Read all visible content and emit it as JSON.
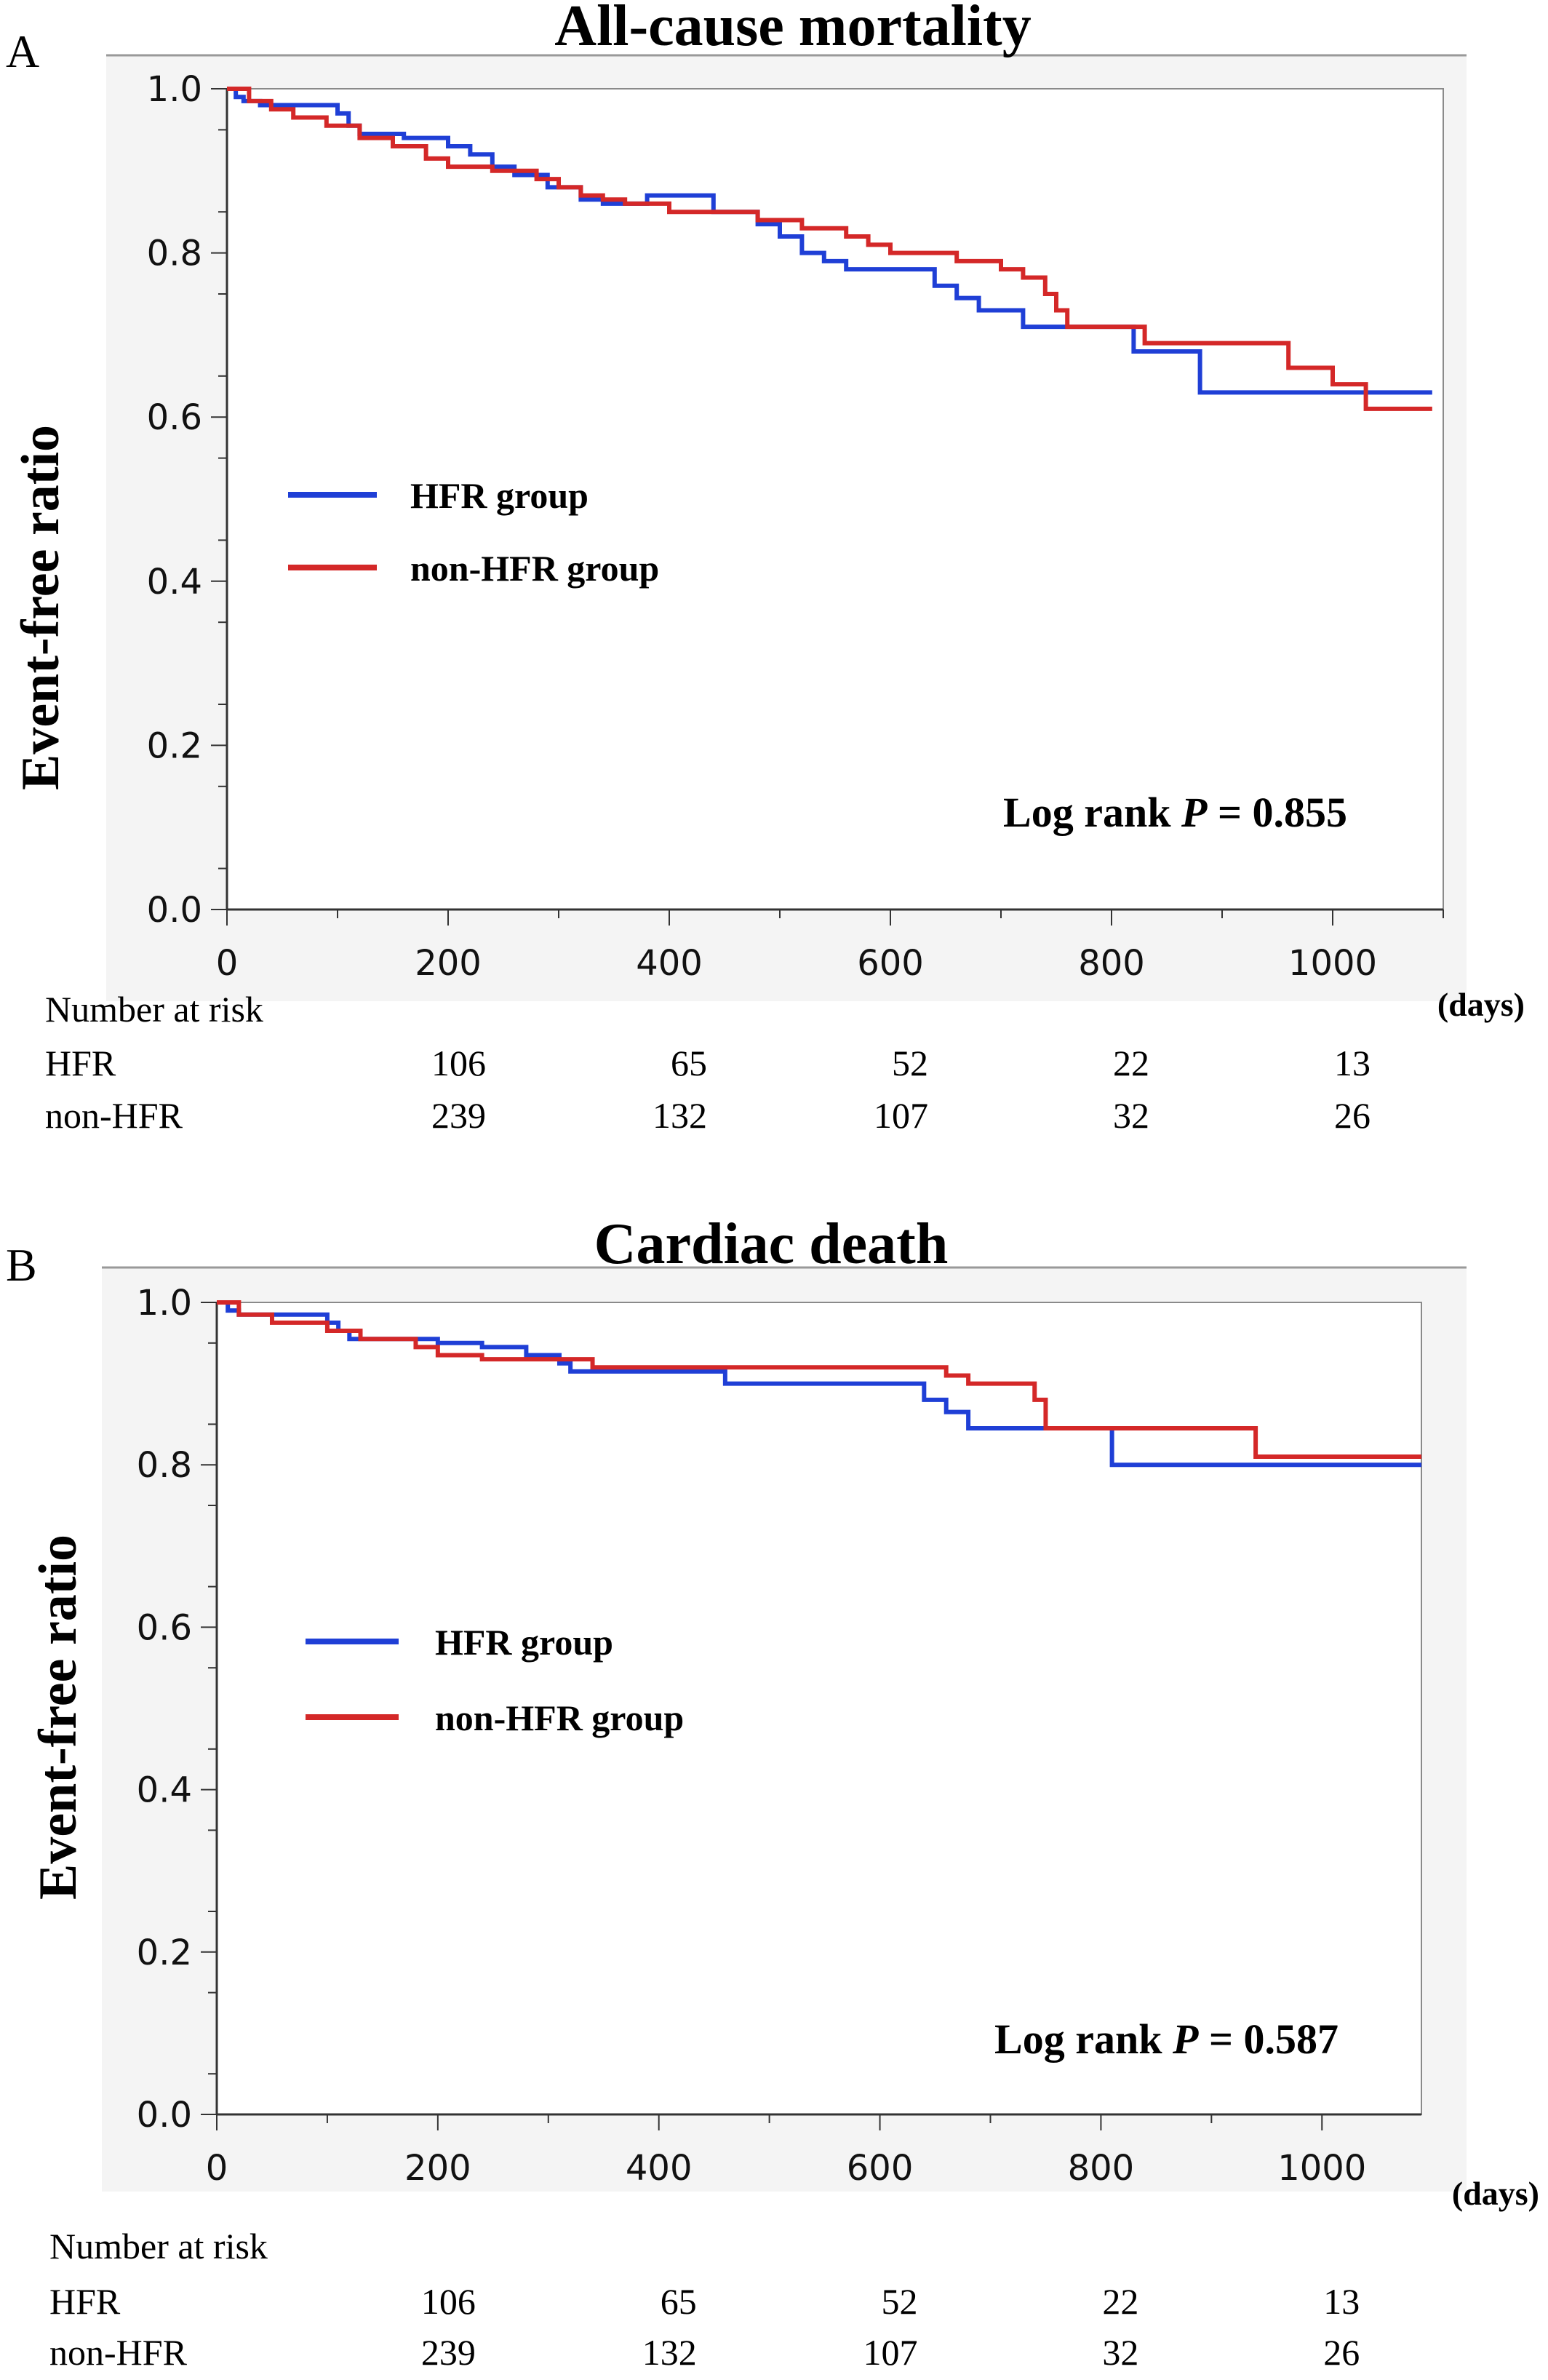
{
  "chart_data": [
    {
      "panel_label": "A",
      "type": "line",
      "step": true,
      "title": "All-cause mortality",
      "xlabel": "",
      "x_unit": "(days)",
      "ylabel": "Event-free ratio",
      "xlim": [
        0,
        1100
      ],
      "ylim": [
        0,
        1
      ],
      "xticks": [
        0,
        200,
        400,
        600,
        800,
        1000
      ],
      "yticks": [
        "0.0",
        "0.2",
        "0.4",
        "0.6",
        "0.8",
        "1.0"
      ],
      "grid": false,
      "legend_position": "center-left",
      "annotation": {
        "prefix": "Log rank ",
        "italic": "P",
        "suffix": " = 0.855"
      },
      "series": [
        {
          "name": "HFR group",
          "color": "#1f3fd6",
          "x": [
            0,
            8,
            15,
            30,
            100,
            110,
            120,
            160,
            200,
            220,
            240,
            260,
            290,
            320,
            340,
            380,
            420,
            440,
            480,
            500,
            520,
            540,
            560,
            600,
            640,
            660,
            680,
            720,
            800,
            820,
            880,
            1000,
            1090
          ],
          "y": [
            1.0,
            0.99,
            0.985,
            0.98,
            0.97,
            0.955,
            0.945,
            0.94,
            0.93,
            0.92,
            0.905,
            0.895,
            0.88,
            0.865,
            0.86,
            0.87,
            0.87,
            0.85,
            0.835,
            0.82,
            0.8,
            0.79,
            0.78,
            0.78,
            0.76,
            0.745,
            0.73,
            0.71,
            0.71,
            0.68,
            0.63,
            0.63,
            0.63
          ]
        },
        {
          "name": "non-HFR group",
          "color": "#d42828",
          "x": [
            0,
            20,
            40,
            60,
            90,
            120,
            150,
            180,
            200,
            240,
            280,
            300,
            320,
            340,
            360,
            400,
            480,
            520,
            560,
            580,
            600,
            640,
            660,
            700,
            720,
            740,
            750,
            760,
            800,
            830,
            900,
            960,
            1000,
            1030,
            1090
          ],
          "y": [
            1.0,
            0.985,
            0.975,
            0.965,
            0.955,
            0.94,
            0.93,
            0.915,
            0.905,
            0.9,
            0.89,
            0.88,
            0.87,
            0.865,
            0.86,
            0.85,
            0.84,
            0.83,
            0.82,
            0.81,
            0.8,
            0.8,
            0.79,
            0.78,
            0.77,
            0.75,
            0.73,
            0.71,
            0.71,
            0.69,
            0.69,
            0.66,
            0.64,
            0.61,
            0.61
          ]
        }
      ],
      "risk_table": {
        "heading": "Number at risk",
        "columns_x": [
          200,
          400,
          600,
          800,
          1000
        ],
        "rows": [
          {
            "label": "HFR",
            "values": [
              "106",
              "65",
              "52",
              "22",
              "13"
            ]
          },
          {
            "label": "non-HFR",
            "values": [
              "239",
              "132",
              "107",
              "32",
              "26"
            ]
          }
        ]
      }
    },
    {
      "panel_label": "B",
      "type": "line",
      "step": true,
      "title": "Cardiac death",
      "xlabel": "",
      "x_unit": "(days)",
      "ylabel": "Event-free ratio",
      "xlim": [
        0,
        1090
      ],
      "ylim": [
        0,
        1
      ],
      "xticks": [
        0,
        200,
        400,
        600,
        800,
        1000
      ],
      "yticks": [
        "0.0",
        "0.2",
        "0.4",
        "0.6",
        "0.8",
        "1.0"
      ],
      "grid": false,
      "legend_position": "center-left",
      "annotation": {
        "prefix": "Log rank ",
        "italic": "P",
        "suffix": " = 0.587"
      },
      "series": [
        {
          "name": "HFR group",
          "color": "#1f3fd6",
          "x": [
            0,
            10,
            20,
            60,
            100,
            110,
            120,
            160,
            200,
            240,
            280,
            310,
            320,
            420,
            460,
            640,
            660,
            680,
            700,
            740,
            800,
            810,
            1090
          ],
          "y": [
            1.0,
            0.99,
            0.985,
            0.985,
            0.975,
            0.965,
            0.955,
            0.955,
            0.95,
            0.945,
            0.935,
            0.925,
            0.915,
            0.915,
            0.9,
            0.88,
            0.865,
            0.845,
            0.845,
            0.845,
            0.845,
            0.8,
            0.8
          ]
        },
        {
          "name": "non-HFR group",
          "color": "#d42828",
          "x": [
            0,
            20,
            50,
            80,
            100,
            130,
            180,
            200,
            240,
            260,
            300,
            340,
            380,
            600,
            660,
            680,
            700,
            740,
            750,
            800,
            940,
            1090
          ],
          "y": [
            1.0,
            0.985,
            0.975,
            0.975,
            0.965,
            0.955,
            0.945,
            0.935,
            0.93,
            0.93,
            0.93,
            0.92,
            0.92,
            0.92,
            0.91,
            0.9,
            0.9,
            0.88,
            0.845,
            0.845,
            0.81,
            0.81
          ]
        }
      ],
      "risk_table": {
        "heading": "Number at risk",
        "columns_x": [
          200,
          400,
          600,
          800,
          1000
        ],
        "rows": [
          {
            "label": "HFR",
            "values": [
              "106",
              "65",
              "52",
              "22",
              "13"
            ]
          },
          {
            "label": "non-HFR",
            "values": [
              "239",
              "132",
              "107",
              "32",
              "26"
            ]
          }
        ]
      }
    }
  ]
}
